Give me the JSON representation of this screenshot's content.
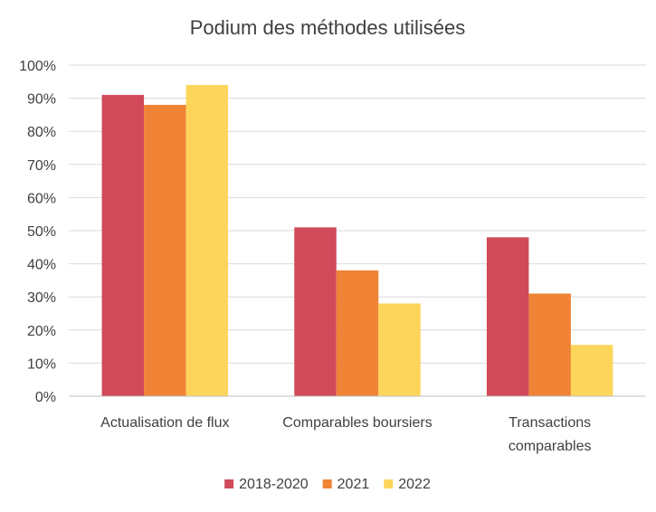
{
  "chart_data": {
    "type": "bar",
    "title": "Podium des méthodes utilisées",
    "xlabel": "",
    "ylabel": "",
    "categories": [
      [
        "Actualisation de flux"
      ],
      [
        "Comparables boursiers"
      ],
      [
        "Transactions",
        "comparables"
      ]
    ],
    "series": [
      {
        "name": "2018-2020",
        "color": "#d04a5a",
        "values": [
          0.91,
          0.51,
          0.48
        ]
      },
      {
        "name": "2021",
        "color": "#f08335",
        "values": [
          0.88,
          0.38,
          0.31
        ]
      },
      {
        "name": "2022",
        "color": "#fdd55a",
        "values": [
          0.94,
          0.28,
          0.155
        ]
      }
    ],
    "ylim": [
      0,
      1
    ],
    "yticks": [
      "0%",
      "10%",
      "20%",
      "30%",
      "40%",
      "50%",
      "60%",
      "70%",
      "80%",
      "90%",
      "100%"
    ],
    "grid": true,
    "legend_position": "bottom"
  }
}
